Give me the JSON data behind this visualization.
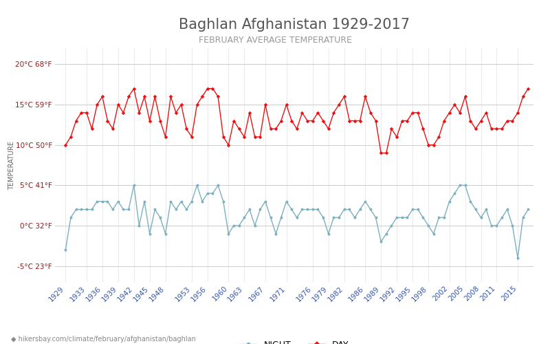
{
  "title": "Baghlan Afghanistan 1929-2017",
  "subtitle": "FEBRUARY AVERAGE TEMPERATURE",
  "ylabel": "TEMPERATURE",
  "footer": "hikersbay.com/climate/february/afghanistan/baghlan",
  "ylim": [
    -7,
    22
  ],
  "yticks_c": [
    -5,
    0,
    5,
    10,
    15,
    20
  ],
  "yticks_f": [
    23,
    32,
    41,
    50,
    59,
    68
  ],
  "background_color": "#ffffff",
  "grid_color": "#cccccc",
  "day_color": "#ee1111",
  "night_color": "#7ab0c0",
  "years": [
    1929,
    1930,
    1931,
    1932,
    1933,
    1934,
    1935,
    1936,
    1937,
    1938,
    1939,
    1940,
    1941,
    1942,
    1943,
    1944,
    1945,
    1946,
    1947,
    1948,
    1949,
    1950,
    1951,
    1952,
    1953,
    1954,
    1955,
    1956,
    1957,
    1958,
    1959,
    1960,
    1961,
    1962,
    1963,
    1964,
    1965,
    1966,
    1967,
    1968,
    1969,
    1970,
    1971,
    1972,
    1973,
    1974,
    1975,
    1976,
    1977,
    1978,
    1979,
    1980,
    1981,
    1982,
    1983,
    1984,
    1985,
    1986,
    1987,
    1988,
    1989,
    1990,
    1991,
    1992,
    1993,
    1994,
    1995,
    1996,
    1997,
    1998,
    1999,
    2000,
    2001,
    2002,
    2003,
    2004,
    2005,
    2006,
    2007,
    2008,
    2009,
    2010,
    2011,
    2012,
    2013,
    2014,
    2015,
    2016,
    2017
  ],
  "day_temps": [
    10,
    11,
    13,
    14,
    14,
    12,
    15,
    16,
    13,
    12,
    15,
    14,
    16,
    17,
    14,
    16,
    13,
    16,
    13,
    11,
    16,
    14,
    15,
    12,
    11,
    15,
    16,
    17,
    17,
    16,
    11,
    10,
    13,
    12,
    11,
    14,
    11,
    11,
    15,
    12,
    12,
    13,
    15,
    13,
    12,
    14,
    13,
    13,
    14,
    13,
    12,
    14,
    15,
    16,
    13,
    13,
    13,
    16,
    14,
    13,
    9,
    9,
    12,
    11,
    13,
    13,
    14,
    14,
    12,
    10,
    10,
    11,
    13,
    14,
    15,
    14,
    16,
    13,
    12,
    13,
    14,
    12,
    12,
    12,
    13,
    13,
    14,
    16,
    17
  ],
  "night_temps": [
    -3,
    1,
    2,
    2,
    2,
    2,
    3,
    3,
    3,
    2,
    3,
    2,
    2,
    5,
    0,
    3,
    -1,
    2,
    1,
    -1,
    3,
    2,
    3,
    2,
    3,
    5,
    3,
    4,
    4,
    5,
    3,
    -1,
    0,
    0,
    1,
    2,
    0,
    2,
    3,
    1,
    -1,
    1,
    3,
    2,
    1,
    2,
    2,
    2,
    2,
    1,
    -1,
    1,
    1,
    2,
    2,
    1,
    2,
    3,
    2,
    1,
    -2,
    -1,
    0,
    1,
    1,
    1,
    2,
    2,
    1,
    0,
    -1,
    1,
    1,
    3,
    4,
    5,
    5,
    3,
    2,
    1,
    2,
    0,
    0,
    1,
    2,
    0,
    -4,
    1,
    2
  ],
  "xtick_years": [
    1929,
    1933,
    1936,
    1939,
    1942,
    1945,
    1948,
    1953,
    1956,
    1960,
    1963,
    1967,
    1971,
    1976,
    1979,
    1982,
    1986,
    1989,
    1992,
    1995,
    1998,
    2002,
    2005,
    2008,
    2011,
    2015
  ],
  "title_fontsize": 15,
  "subtitle_fontsize": 9,
  "axis_label_fontsize": 7,
  "tick_fontsize": 7.5,
  "footer_fontsize": 7
}
